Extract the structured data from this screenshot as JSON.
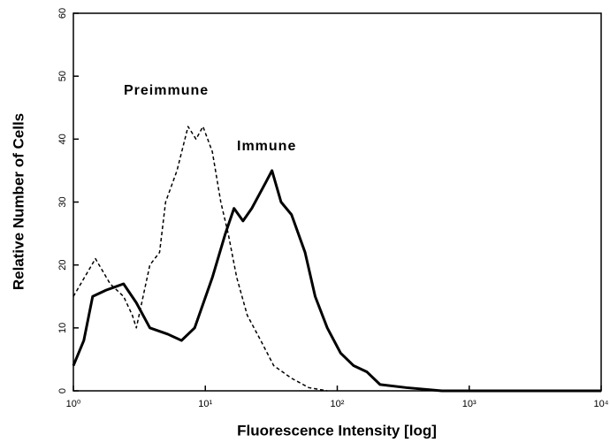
{
  "chart_data": {
    "type": "line",
    "xlabel": "Fluorescence   Intensity   [log]",
    "ylabel": "Relative Number of Cells",
    "xscale": "log",
    "xlim": [
      1,
      10000
    ],
    "xticks": [
      {
        "value": 1,
        "label": "10⁰"
      },
      {
        "value": 10,
        "label": "10¹"
      },
      {
        "value": 100,
        "label": "10²"
      },
      {
        "value": 1000,
        "label": "10³"
      },
      {
        "value": 10000,
        "label": "10⁴"
      }
    ],
    "ylim": [
      0,
      60
    ],
    "yticks": [
      0,
      10,
      20,
      30,
      40,
      50,
      60
    ],
    "annotations": [
      "Preimmune",
      "Immune"
    ],
    "series": [
      {
        "name": "Preimmune",
        "color": "#000000",
        "dashed": true,
        "x": [
          1,
          1.47,
          1.9,
          2.4,
          2.8,
          3.0,
          3.8,
          4.5,
          5.0,
          6.1,
          7.4,
          8.5,
          9.6,
          11.3,
          13.1,
          14.9,
          17.3,
          20.8,
          26.3,
          33,
          45,
          61,
          84
        ],
        "values": [
          15,
          21,
          17,
          15,
          12,
          10,
          20,
          22,
          30,
          35,
          42,
          40,
          42,
          38,
          30,
          25,
          18,
          12,
          8,
          4,
          2,
          0.5,
          0
        ]
      },
      {
        "name": "Immune",
        "color": "#000000",
        "dashed": false,
        "x": [
          1,
          1.2,
          1.4,
          1.77,
          2.4,
          3.0,
          3.8,
          5.2,
          6.6,
          8.3,
          11.3,
          14.2,
          16.5,
          19.3,
          22.5,
          28.5,
          32,
          37.5,
          45,
          57,
          68,
          84,
          106,
          133,
          168,
          211,
          336,
          620,
          5400,
          10000
        ],
        "values": [
          4,
          8,
          15,
          16,
          17,
          14,
          10,
          9,
          8,
          10,
          18,
          25,
          29,
          27,
          29,
          33,
          35,
          30,
          28,
          22,
          15,
          10,
          6,
          4,
          3,
          1,
          0.5,
          0,
          0,
          0
        ]
      }
    ]
  }
}
